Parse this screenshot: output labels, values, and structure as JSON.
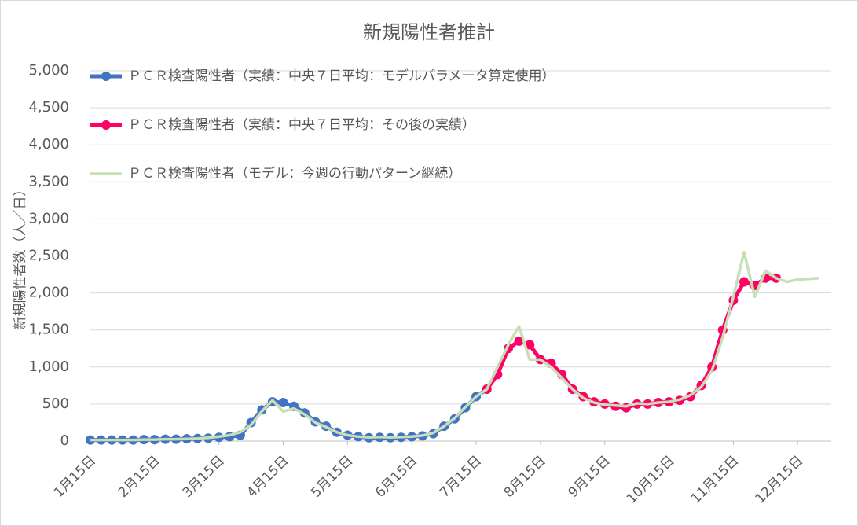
{
  "chart_data": {
    "type": "line",
    "title": "新規陽性者推計",
    "y_label": "新規陽性者数（人／日）",
    "categories": [
      "1月15日",
      null,
      null,
      null,
      null,
      null,
      "2月15日",
      null,
      null,
      null,
      null,
      null,
      "3月15日",
      null,
      null,
      null,
      null,
      null,
      "4月15日",
      null,
      null,
      null,
      null,
      null,
      "5月15日",
      null,
      null,
      null,
      null,
      null,
      "6月15日",
      null,
      null,
      null,
      null,
      null,
      "7月15日",
      null,
      null,
      null,
      null,
      null,
      "8月15日",
      null,
      null,
      null,
      null,
      null,
      "9月15日",
      null,
      null,
      null,
      null,
      null,
      "10月15日",
      null,
      null,
      null,
      null,
      null,
      "11月15日",
      null,
      null,
      null,
      null,
      null,
      "12月15日",
      null,
      null
    ],
    "series": [
      {
        "name": "ＰＣＲ検査陽性者（実績：中央７日平均：モデルパラメータ算定使用）",
        "color": "#4472c4",
        "markers": true,
        "values": [
          15,
          15,
          15,
          15,
          15,
          20,
          20,
          25,
          25,
          30,
          35,
          40,
          50,
          60,
          80,
          250,
          420,
          530,
          520,
          470,
          380,
          260,
          200,
          120,
          80,
          60,
          45,
          50,
          45,
          50,
          60,
          70,
          100,
          200,
          300,
          450,
          600,
          700,
          null,
          null,
          null,
          null,
          null,
          null,
          null,
          null,
          null,
          null,
          null,
          null,
          null,
          null,
          null,
          null,
          null,
          null,
          null,
          null,
          null,
          null,
          null,
          null,
          null,
          null,
          null,
          null,
          null,
          null,
          null
        ]
      },
      {
        "name": "ＰＣＲ検査陽性者（実績：中央７日平均：その後の実績）",
        "color": "#ff0066",
        "markers": true,
        "values": [
          null,
          null,
          null,
          null,
          null,
          null,
          null,
          null,
          null,
          null,
          null,
          null,
          null,
          null,
          null,
          null,
          null,
          null,
          null,
          null,
          null,
          null,
          null,
          null,
          null,
          null,
          null,
          null,
          null,
          null,
          null,
          null,
          null,
          null,
          null,
          null,
          null,
          700,
          900,
          1250,
          1350,
          1300,
          1100,
          1050,
          900,
          700,
          600,
          530,
          500,
          470,
          450,
          500,
          500,
          520,
          530,
          550,
          600,
          750,
          1000,
          1500,
          1900,
          2150,
          2100,
          2200,
          2200,
          null,
          null,
          null,
          null
        ]
      },
      {
        "name": "ＰＣＲ検査陽性者（モデル：今週の行動パターン継続）",
        "color": "#c5e0b4",
        "markers": false,
        "values": [
          15,
          15,
          15,
          15,
          15,
          20,
          20,
          25,
          25,
          30,
          35,
          45,
          60,
          80,
          120,
          220,
          400,
          550,
          400,
          440,
          360,
          250,
          190,
          120,
          80,
          60,
          50,
          55,
          50,
          55,
          60,
          75,
          110,
          200,
          310,
          460,
          600,
          700,
          1000,
          1300,
          1550,
          1100,
          1100,
          1000,
          850,
          700,
          580,
          520,
          490,
          480,
          470,
          510,
          500,
          520,
          530,
          560,
          620,
          730,
          950,
          1400,
          1950,
          2550,
          1950,
          2300,
          2200,
          2150,
          2180,
          2190,
          2200
        ]
      }
    ],
    "ylim": [
      0,
      5000
    ],
    "yticks": [
      0,
      500,
      {
        "value": 1000,
        "label": "1,000"
      },
      {
        "value": 1500,
        "label": "1,500"
      },
      {
        "value": 2000,
        "label": "2,000"
      },
      {
        "value": 2500,
        "label": "2,500"
      },
      {
        "value": 3000,
        "label": "3,000"
      },
      {
        "value": 3500,
        "label": "3,500"
      },
      {
        "value": 4000,
        "label": "4,000"
      },
      {
        "value": 4500,
        "label": "4,500"
      },
      {
        "value": 5000,
        "label": "5,000"
      }
    ],
    "grid": true
  }
}
